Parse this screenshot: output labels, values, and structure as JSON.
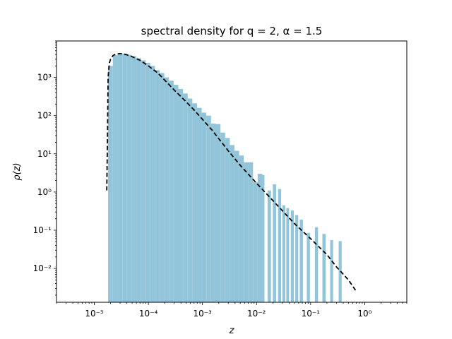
{
  "chart_data": {
    "type": "bar",
    "title": "spectral density for q = 2, α = 1.5",
    "xlabel": "z",
    "ylabel": "ρ(z)",
    "xscale": "log",
    "yscale": "log",
    "xlim": [
      2e-06,
      6
    ],
    "ylim": [
      0.0013,
      9000
    ],
    "x_ticks": [
      {
        "value": 1e-05,
        "label": "10⁻⁵"
      },
      {
        "value": 0.0001,
        "label": "10⁻⁴"
      },
      {
        "value": 0.001,
        "label": "10⁻³"
      },
      {
        "value": 0.01,
        "label": "10⁻²"
      },
      {
        "value": 0.1,
        "label": "10⁻¹"
      },
      {
        "value": 1,
        "label": "10⁰"
      }
    ],
    "y_ticks": [
      {
        "value": 0.01,
        "label": "10⁻²"
      },
      {
        "value": 0.1,
        "label": "10⁻¹"
      },
      {
        "value": 1,
        "label": "10⁰"
      },
      {
        "value": 10,
        "label": "10¹"
      },
      {
        "value": 100,
        "label": "10²"
      },
      {
        "value": 1000,
        "label": "10³"
      }
    ],
    "grid": false,
    "legend": "none",
    "bar_color": "#92c5d9",
    "series": [
      {
        "type": "histogram",
        "bins": [
          [
            1.8e-05,
            2.2e-05,
            2000
          ],
          [
            2.2e-05,
            2.7e-05,
            3800
          ],
          [
            2.7e-05,
            3.3e-05,
            4300
          ],
          [
            3.3e-05,
            4e-05,
            4200
          ],
          [
            4e-05,
            4.9e-05,
            3900
          ],
          [
            4.9e-05,
            6e-05,
            3600
          ],
          [
            6e-05,
            7.3e-05,
            3200
          ],
          [
            7.3e-05,
            8.9e-05,
            2800
          ],
          [
            8.9e-05,
            0.000108,
            2400
          ],
          [
            0.000108,
            0.000132,
            2000
          ],
          [
            0.000132,
            0.000162,
            1550
          ],
          [
            0.000162,
            0.000197,
            1300
          ],
          [
            0.000197,
            0.00024,
            1000
          ],
          [
            0.00024,
            0.000293,
            820
          ],
          [
            0.000293,
            0.000358,
            640
          ],
          [
            0.000358,
            0.000437,
            500
          ],
          [
            0.000437,
            0.000533,
            380
          ],
          [
            0.000533,
            0.00065,
            280
          ],
          [
            0.00065,
            0.000793,
            210
          ],
          [
            0.000793,
            0.000967,
            160
          ],
          [
            0.000967,
            0.00118,
            120
          ],
          [
            0.00118,
            0.00144,
            100
          ],
          [
            0.00144,
            0.00176,
            62
          ],
          [
            0.00176,
            0.00215,
            60
          ],
          [
            0.00215,
            0.00262,
            36
          ],
          [
            0.00262,
            0.0032,
            26
          ],
          [
            0.0032,
            0.0039,
            17
          ],
          [
            0.0039,
            0.00476,
            12
          ],
          [
            0.00476,
            0.0058,
            9
          ],
          [
            0.0058,
            0.0071,
            6
          ],
          [
            0.0071,
            0.0086,
            6
          ],
          [
            0.0086,
            0.0105,
            1.8
          ],
          [
            0.0105,
            0.0128,
            3
          ],
          [
            0.0128,
            0.014,
            2.8
          ],
          [
            0.016,
            0.0185,
            1.1
          ],
          [
            0.02,
            0.023,
            1.6
          ],
          [
            0.025,
            0.0285,
            1.2
          ],
          [
            0.03,
            0.034,
            0.45
          ],
          [
            0.0355,
            0.04,
            0.38
          ],
          [
            0.043,
            0.049,
            0.33
          ],
          [
            0.052,
            0.059,
            0.25
          ],
          [
            0.063,
            0.072,
            0.19
          ],
          [
            0.085,
            0.097,
            0.085
          ],
          [
            0.12,
            0.137,
            0.12
          ],
          [
            0.165,
            0.19,
            0.08
          ],
          [
            0.23,
            0.26,
            0.055
          ],
          [
            0.33,
            0.375,
            0.052
          ]
        ]
      },
      {
        "type": "line",
        "style": "dashed",
        "color": "#000000",
        "x": [
          1.7e-05,
          1.75e-05,
          1.8e-05,
          1.9e-05,
          2e-05,
          2.2e-05,
          2.5e-05,
          3e-05,
          3.5e-05,
          4e-05,
          5e-05,
          7e-05,
          0.0001,
          0.00015,
          0.0002,
          0.0003,
          0.0005,
          0.0007,
          0.001,
          0.0015,
          0.002,
          0.003,
          0.005,
          0.01,
          0.02,
          0.05,
          0.1,
          0.2,
          0.3,
          0.5,
          0.7
        ],
        "y": [
          1.1,
          20,
          1000,
          2400,
          3000,
          3700,
          4100,
          4200,
          4100,
          3900,
          3500,
          2800,
          2000,
          1300,
          850,
          470,
          230,
          140,
          80,
          42,
          25,
          12,
          5,
          1.7,
          0.6,
          0.15,
          0.06,
          0.023,
          0.011,
          0.005,
          0.0025
        ]
      }
    ]
  }
}
